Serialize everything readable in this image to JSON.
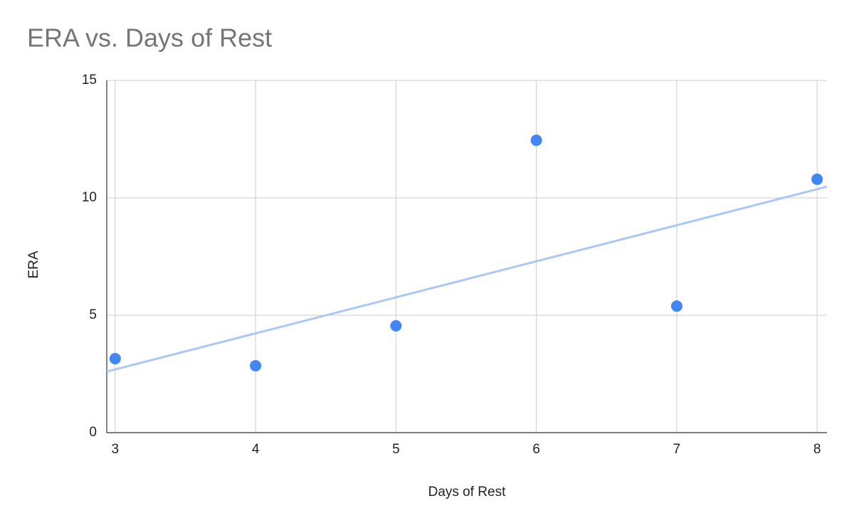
{
  "chart_data": {
    "type": "scatter",
    "title": "ERA vs. Days of Rest",
    "x_label": "Days of Rest",
    "y_label": "ERA",
    "series": [
      {
        "name": "ERA",
        "color": "#4285f4",
        "x": [
          3,
          4,
          5,
          6,
          7,
          8
        ],
        "values": [
          3.15,
          2.85,
          4.55,
          12.45,
          5.39,
          10.79
        ]
      }
    ],
    "trendline": "linear",
    "trendline_color": "#aac8f6",
    "xlim": [
      2.94,
      8.07
    ],
    "xticks": [
      3,
      4,
      5,
      6,
      7,
      8
    ],
    "ylim": [
      0,
      15
    ],
    "yticks": [
      0,
      5,
      10,
      15
    ],
    "grid": true
  }
}
